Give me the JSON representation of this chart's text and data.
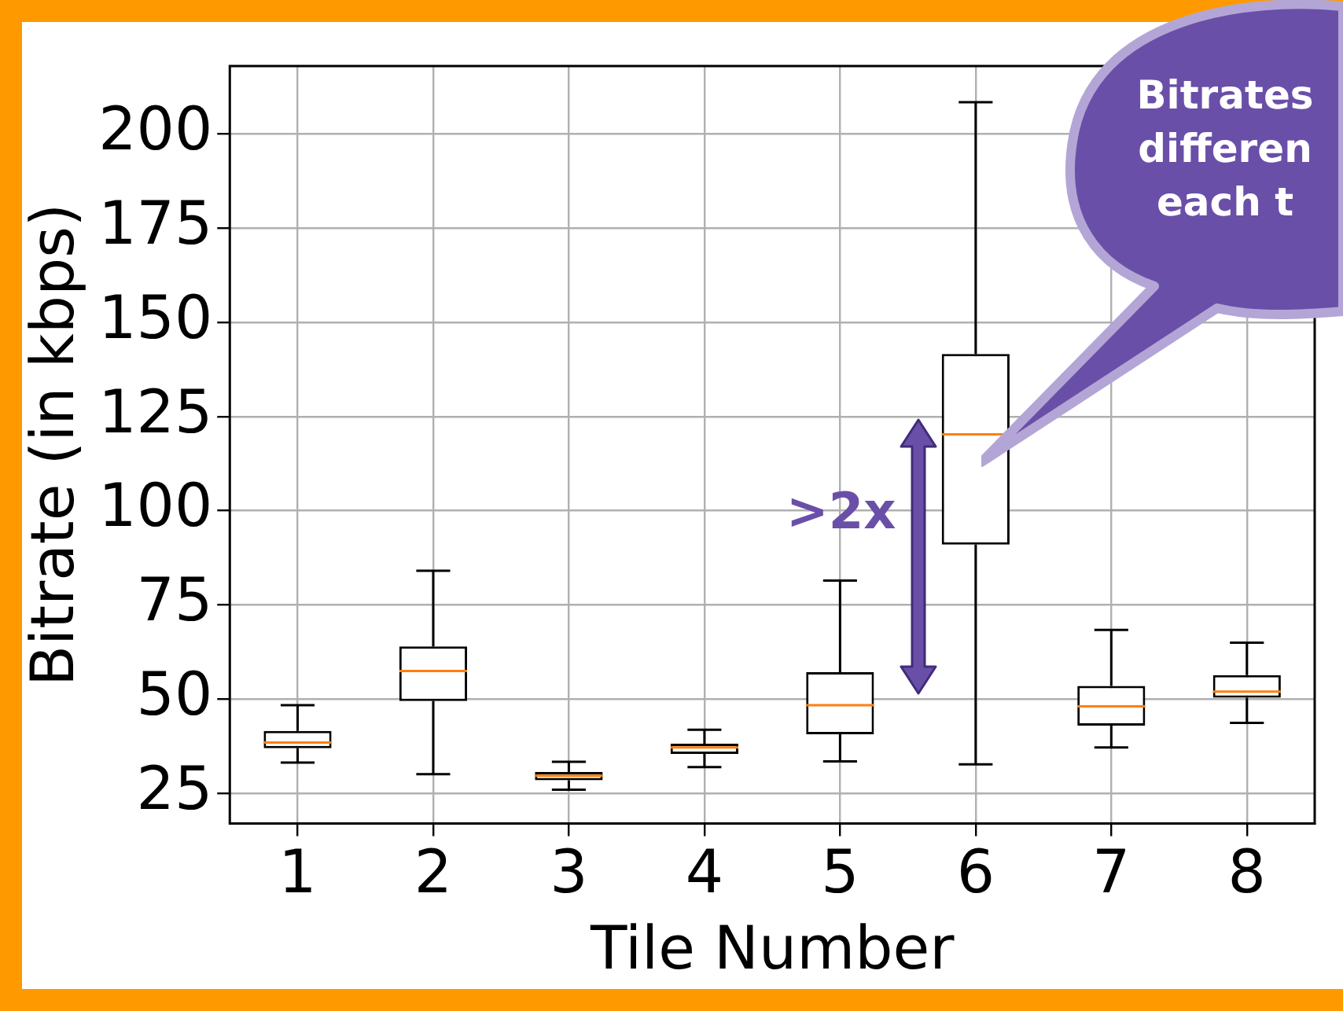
{
  "chart_data": {
    "type": "box",
    "categories": [
      "1",
      "2",
      "3",
      "4",
      "5",
      "6",
      "7",
      "8"
    ],
    "boxes": [
      {
        "low": 33.2,
        "q1": 37,
        "median": 38.5,
        "q3": 41.6,
        "high": 48.4
      },
      {
        "low": 30.1,
        "q1": 49.5,
        "median": 57.5,
        "q3": 64,
        "high": 84.1
      },
      {
        "low": 26,
        "q1": 28.5,
        "median": 29.7,
        "q3": 30.7,
        "high": 33.4
      },
      {
        "low": 32,
        "q1": 35.5,
        "median": 37.2,
        "q3": 38.2,
        "high": 41.9
      },
      {
        "low": 33.5,
        "q1": 40.7,
        "median": 48.4,
        "q3": 57.2,
        "high": 81.5
      },
      {
        "low": 32.7,
        "q1": 91,
        "median": 120.3,
        "q3": 141.6,
        "high": 208.4
      },
      {
        "low": 37.2,
        "q1": 43,
        "median": 48.1,
        "q3": 53.5,
        "high": 68.4
      },
      {
        "low": 43.7,
        "q1": 50.4,
        "median": 52,
        "q3": 56.4,
        "high": 65
      }
    ],
    "ylim": [
      17,
      218
    ],
    "yticks": [
      25,
      50,
      75,
      100,
      125,
      150,
      175,
      200
    ],
    "xlabel": "Tile Number",
    "ylabel": "Bitrate (in kbps)",
    "grid": true,
    "annotations": [
      ">2x",
      "Bitrates\ndifferen\neach t"
    ]
  }
}
